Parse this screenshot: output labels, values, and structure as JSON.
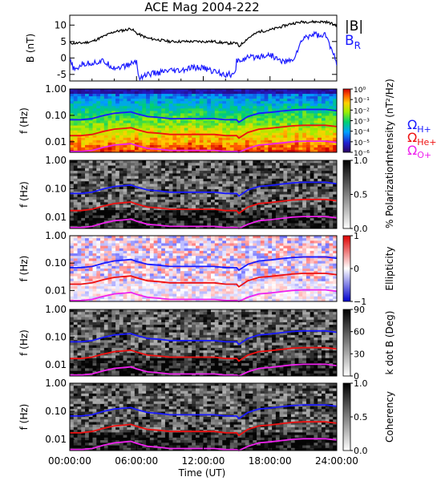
{
  "chart_data": [
    {
      "type": "line",
      "title": "ACE Mag 2004-222",
      "ylabel": "B (nT)",
      "ylim": [
        -7,
        13
      ],
      "yticks": [
        10,
        5,
        0,
        -5
      ],
      "series": [
        {
          "name": "|B|",
          "color": "#000000",
          "x": [
            0,
            1,
            2,
            3,
            4,
            5,
            5.5,
            6,
            7,
            8,
            9,
            10,
            11,
            12,
            13,
            14,
            15,
            15.2,
            16,
            17,
            18,
            19,
            20,
            21,
            22,
            23,
            24
          ],
          "values": [
            4.5,
            4.5,
            5,
            6.5,
            8,
            8.5,
            9,
            7.5,
            6,
            5.5,
            5,
            5,
            5,
            5,
            5,
            4.5,
            4.5,
            3.5,
            6,
            8,
            8.5,
            9.5,
            10.5,
            11,
            11,
            11,
            10
          ]
        },
        {
          "name": "B_R",
          "color": "#1a1aff",
          "x": [
            0,
            0.5,
            1,
            2,
            3,
            4,
            5,
            6,
            6.2,
            7,
            8,
            9,
            10,
            11,
            12,
            12.8,
            13,
            14,
            14.9,
            15,
            16,
            17,
            18,
            19,
            20,
            21,
            22,
            22.5,
            23,
            24
          ],
          "values": [
            -1,
            -4,
            -2,
            -1.5,
            -1,
            -3,
            -2.5,
            -1,
            -6,
            -5,
            -4.5,
            -4,
            -4,
            -3,
            -3,
            -4,
            -4,
            -5,
            -5,
            -1,
            0,
            0.5,
            1,
            -1,
            -1,
            6,
            7.5,
            6.5,
            7,
            -1.5
          ]
        }
      ]
    },
    {
      "type": "heatmap",
      "ylabel": "f (Hz)",
      "yticks": [
        "1.00",
        "0.10",
        "0.01"
      ],
      "colorbar": {
        "label": "Intensity (nT²/Hz)",
        "ticks": [
          "10⁰",
          "10⁻¹",
          "10⁻²",
          "10⁻³",
          "10⁻⁴",
          "10⁻⁵",
          "10⁻⁶"
        ],
        "scale": "rainbow"
      },
      "legend": [
        {
          "label": "Ω",
          "sub": "H+",
          "color": "#1a1aff"
        },
        {
          "label": "Ω",
          "sub": "He+",
          "color": "#ee1111"
        },
        {
          "label": "Ω",
          "sub": "O+",
          "color": "#ee22ee"
        }
      ]
    },
    {
      "type": "heatmap",
      "ylabel": "f (Hz)",
      "yticks": [
        "1.00",
        "0.10",
        "0.01"
      ],
      "colorbar": {
        "label": "% Polarization",
        "ticks": [
          "1.0",
          "0.5",
          "0.0"
        ],
        "scale": "gray"
      }
    },
    {
      "type": "heatmap",
      "ylabel": "f (Hz)",
      "yticks": [
        "1.00",
        "0.10",
        "0.01"
      ],
      "colorbar": {
        "label": "Ellipticity",
        "ticks": [
          "1",
          "0",
          "−1"
        ],
        "scale": "diverging"
      }
    },
    {
      "type": "heatmap",
      "ylabel": "f (Hz)",
      "yticks": [
        "1.00",
        "0.10",
        "0.01"
      ],
      "colorbar": {
        "label": "k dot B (Deg)",
        "ticks": [
          "90",
          "60",
          "30",
          "0"
        ],
        "scale": "gray"
      }
    },
    {
      "type": "heatmap",
      "ylabel": "f (Hz)",
      "yticks": [
        "1.00",
        "0.10",
        "0.01"
      ],
      "colorbar": {
        "label": "Coherency",
        "ticks": [
          "1.0",
          "0.5",
          "0.0"
        ],
        "scale": "gray"
      }
    }
  ],
  "gyrofrequency_lines": {
    "x": [
      0,
      1,
      2,
      3,
      4,
      5,
      5.5,
      6,
      7,
      8,
      9,
      10,
      11,
      12,
      13,
      14,
      15,
      15.2,
      16,
      17,
      18,
      19,
      20,
      21,
      22,
      23,
      24
    ],
    "h_plus_hz": [
      0.068,
      0.068,
      0.075,
      0.098,
      0.12,
      0.13,
      0.135,
      0.115,
      0.09,
      0.084,
      0.075,
      0.075,
      0.075,
      0.075,
      0.075,
      0.068,
      0.068,
      0.055,
      0.09,
      0.12,
      0.13,
      0.145,
      0.16,
      0.168,
      0.168,
      0.168,
      0.15
    ],
    "he_plus_hz": [
      0.017,
      0.017,
      0.019,
      0.0245,
      0.03,
      0.0325,
      0.034,
      0.029,
      0.0225,
      0.021,
      0.019,
      0.019,
      0.019,
      0.019,
      0.019,
      0.017,
      0.017,
      0.0137,
      0.0225,
      0.03,
      0.0325,
      0.036,
      0.04,
      0.042,
      0.042,
      0.042,
      0.0375
    ],
    "o_plus_hz": [
      0.0043,
      0.0043,
      0.0047,
      0.0061,
      0.0075,
      0.0081,
      0.0085,
      0.0072,
      0.0056,
      0.0052,
      0.0047,
      0.0047,
      0.0047,
      0.0047,
      0.0047,
      0.0043,
      0.0043,
      0.0034,
      0.0056,
      0.0075,
      0.0081,
      0.009,
      0.01,
      0.0105,
      0.0105,
      0.0105,
      0.0094
    ]
  },
  "x_axis": {
    "label": "Time (UT)",
    "ticks": [
      "00:00:00",
      "06:00:00",
      "12:00:00",
      "18:00:00",
      "24:00:00"
    ],
    "range": [
      0,
      24
    ]
  },
  "labels": {
    "legend_B": "|B|",
    "legend_BR_main": "B",
    "legend_BR_sub": "R"
  }
}
